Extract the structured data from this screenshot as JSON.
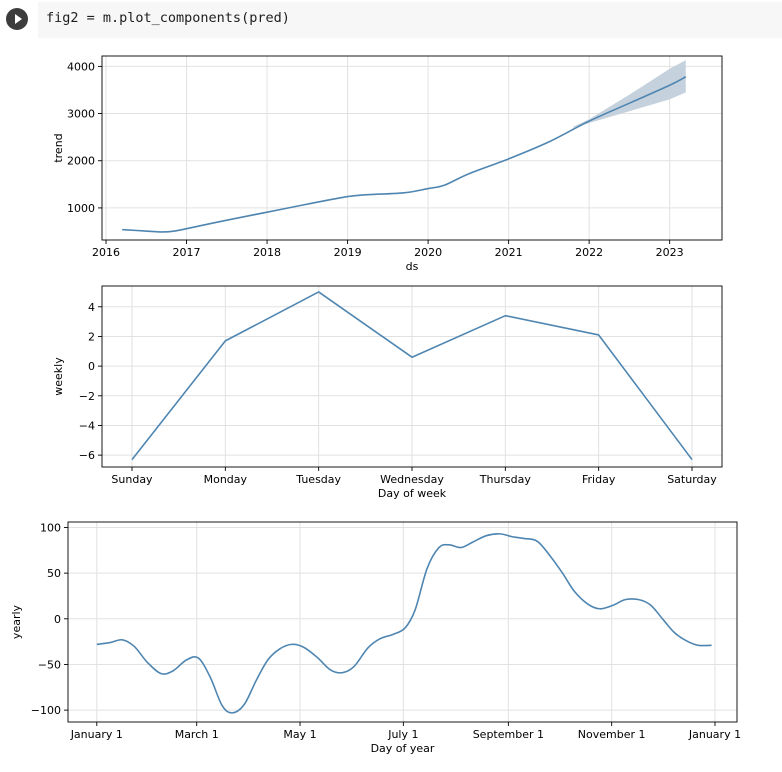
{
  "code_cell": {
    "code": "fig2 = m.plot_components(pred)",
    "run_icon": "play-icon"
  },
  "colors": {
    "line": "#4f86b1",
    "band": "#c5d1dc",
    "grid": "#e2e2e2",
    "cell_bg": "#f7f7f7",
    "run_button": "#3c3c3c"
  },
  "chart_data": [
    {
      "type": "line",
      "xlabel": "ds",
      "ylabel": "trend",
      "grid": true,
      "x_ticks": [
        "2016",
        "2017",
        "2018",
        "2019",
        "2020",
        "2021",
        "2022",
        "2023"
      ],
      "y_ticks": [
        "1000",
        "2000",
        "3000",
        "4000"
      ],
      "xlim": [
        2015.95,
        2023.65
      ],
      "ylim": [
        320,
        4220
      ],
      "series": [
        {
          "x": [
            2016.2,
            2016.45,
            2016.7,
            2016.85,
            2017.0,
            2017.5,
            2018.0,
            2018.5,
            2019.0,
            2019.25,
            2019.7,
            2020.0,
            2020.2,
            2020.5,
            2021.0,
            2021.5,
            2022.0,
            2022.5,
            2023.0,
            2023.2
          ],
          "y": [
            540,
            515,
            490,
            510,
            560,
            740,
            910,
            1080,
            1240,
            1280,
            1320,
            1410,
            1480,
            1720,
            2040,
            2400,
            2840,
            3220,
            3600,
            3780
          ],
          "band_x": [
            2021.8,
            2022.0,
            2022.5,
            2023.0,
            2023.2
          ],
          "band_lower": [
            2700,
            2800,
            3050,
            3300,
            3450
          ],
          "band_upper": [
            2720,
            2880,
            3400,
            3950,
            4130
          ]
        }
      ]
    },
    {
      "type": "line",
      "xlabel": "Day of week",
      "ylabel": "weekly",
      "grid": true,
      "categories": [
        "Sunday",
        "Monday",
        "Tuesday",
        "Wednesday",
        "Thursday",
        "Friday",
        "Saturday"
      ],
      "y_ticks": [
        "−6",
        "−4",
        "−2",
        "0",
        "2",
        "4"
      ],
      "ylim": [
        -6.8,
        5.4
      ],
      "series": [
        {
          "values": [
            -6.3,
            1.7,
            5.0,
            0.6,
            3.4,
            2.1,
            -6.3
          ]
        }
      ]
    },
    {
      "type": "line",
      "xlabel": "Day of year",
      "ylabel": "yearly",
      "grid": true,
      "x_ticks": [
        "January 1",
        "March 1",
        "May 1",
        "July 1",
        "September 1",
        "November 1",
        "January 1"
      ],
      "x_tick_days": [
        0,
        59,
        120,
        181,
        243,
        304,
        365
      ],
      "y_ticks": [
        "−100",
        "−50",
        "0",
        "50",
        "100"
      ],
      "xlim": [
        -17,
        378
      ],
      "ylim": [
        -113,
        106
      ],
      "series": [
        {
          "x": [
            0,
            8,
            15,
            22,
            30,
            38,
            45,
            53,
            60,
            67,
            74,
            80,
            87,
            94,
            101,
            108,
            115,
            122,
            130,
            138,
            145,
            152,
            160,
            167,
            175,
            182,
            188,
            195,
            202,
            208,
            215,
            222,
            230,
            238,
            245,
            252,
            260,
            268,
            275,
            282,
            290,
            297,
            305,
            312,
            320,
            327,
            334,
            341,
            348,
            355,
            363
          ],
          "y": [
            -28,
            -26,
            -23,
            -30,
            -48,
            -60,
            -57,
            -45,
            -43,
            -64,
            -95,
            -103,
            -94,
            -68,
            -45,
            -33,
            -28,
            -31,
            -42,
            -56,
            -59,
            -52,
            -32,
            -22,
            -17,
            -10,
            10,
            55,
            78,
            81,
            78,
            84,
            91,
            93,
            90,
            88,
            85,
            68,
            50,
            30,
            16,
            11,
            15,
            21,
            21,
            15,
            0,
            -15,
            -24,
            -29,
            -29
          ]
        }
      ]
    }
  ]
}
